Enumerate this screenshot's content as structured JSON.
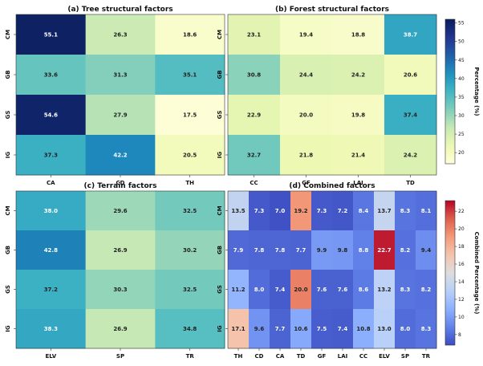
{
  "chart_data": [
    {
      "type": "heatmap",
      "title": "(a) Tree structural factors",
      "rows": [
        "CM",
        "GB",
        "GS",
        "IG"
      ],
      "columns": [
        "CA",
        "CD",
        "TH"
      ],
      "values": [
        [
          55.1,
          26.3,
          18.6
        ],
        [
          33.6,
          31.3,
          35.1
        ],
        [
          54.6,
          27.9,
          17.5
        ],
        [
          37.3,
          42.2,
          20.5
        ]
      ],
      "colormap": "YlGnBu",
      "vmin": 17,
      "vmax": 56
    },
    {
      "type": "heatmap",
      "title": "(b) Forest structural factors",
      "rows": [
        "CM",
        "GB",
        "GS",
        "IG"
      ],
      "columns": [
        "CC",
        "GF",
        "LAI",
        "TD"
      ],
      "values": [
        [
          23.1,
          19.4,
          18.8,
          38.7
        ],
        [
          30.8,
          24.4,
          24.2,
          20.6
        ],
        [
          22.9,
          20.0,
          19.8,
          37.4
        ],
        [
          32.7,
          21.8,
          21.4,
          24.2
        ]
      ],
      "colormap": "YlGnBu",
      "vmin": 17,
      "vmax": 56
    },
    {
      "type": "heatmap",
      "title": "(c) Terrain factors",
      "rows": [
        "CM",
        "GB",
        "GS",
        "IG"
      ],
      "columns": [
        "ELV",
        "SP",
        "TR"
      ],
      "values": [
        [
          38.0,
          29.6,
          32.5
        ],
        [
          42.8,
          26.9,
          30.2
        ],
        [
          37.2,
          30.3,
          32.5
        ],
        [
          38.3,
          26.9,
          34.8
        ]
      ],
      "colormap": "YlGnBu",
      "vmin": 17,
      "vmax": 56
    },
    {
      "type": "heatmap",
      "title": "(d) Combined factors",
      "rows": [
        "CM",
        "GB",
        "GS",
        "IG"
      ],
      "columns": [
        "TH",
        "CD",
        "CA",
        "TD",
        "GF",
        "LAI",
        "CC",
        "ELV",
        "SP",
        "TR"
      ],
      "values": [
        [
          13.5,
          7.3,
          7.0,
          19.2,
          7.3,
          7.2,
          8.4,
          13.7,
          8.3,
          8.1
        ],
        [
          7.9,
          7.8,
          7.8,
          7.7,
          9.9,
          9.8,
          8.8,
          22.7,
          8.2,
          9.4
        ],
        [
          11.2,
          8.0,
          7.4,
          20.0,
          7.6,
          7.6,
          8.6,
          13.2,
          8.3,
          8.2
        ],
        [
          17.1,
          9.6,
          7.7,
          10.6,
          7.5,
          7.4,
          10.8,
          13.0,
          8.0,
          8.3
        ]
      ],
      "colormap": "coolwarm",
      "vmin": 6.8,
      "vmax": 23.2
    }
  ],
  "colorbars": [
    {
      "label": "Percentage (%)",
      "ticks": [
        20,
        25,
        30,
        35,
        40,
        45,
        50,
        55
      ],
      "vmin": 17,
      "vmax": 56,
      "colormap": "YlGnBu"
    },
    {
      "label": "Combined Percentage (%)",
      "ticks": [
        8,
        10,
        12,
        14,
        16,
        18,
        20,
        22
      ],
      "vmin": 6.8,
      "vmax": 23.2,
      "colormap": "coolwarm"
    }
  ]
}
